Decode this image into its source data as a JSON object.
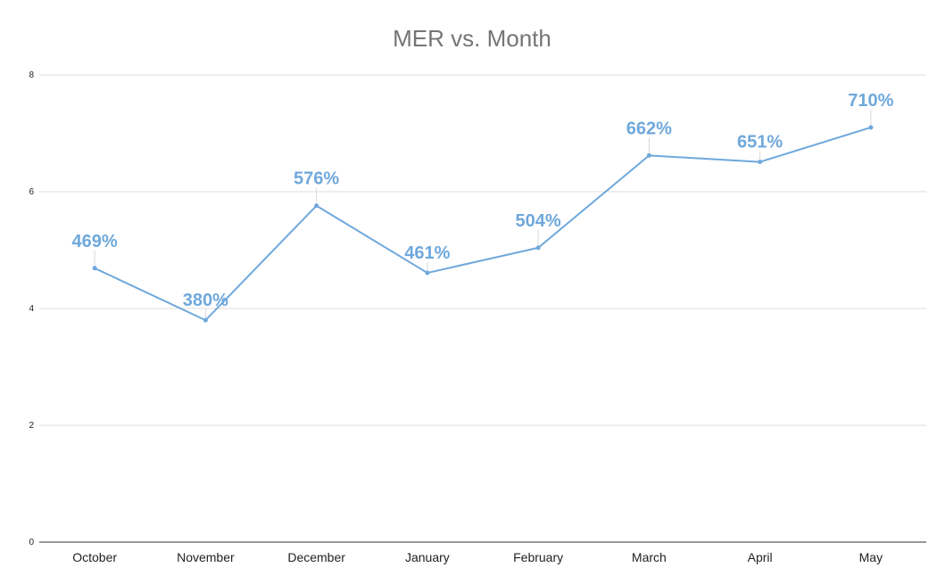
{
  "chart_data": {
    "type": "line",
    "title": "MER vs. Month",
    "xlabel": "",
    "ylabel": "",
    "categories": [
      "October",
      "November",
      "December",
      "January",
      "February",
      "March",
      "April",
      "May"
    ],
    "series": [
      {
        "values": [
          4.69,
          3.8,
          5.76,
          4.61,
          5.04,
          6.62,
          6.51,
          7.1
        ],
        "data_labels": [
          "469%",
          "380%",
          "576%",
          "461%",
          "504%",
          "662%",
          "651%",
          "710%"
        ],
        "color": "#6fa8dc"
      }
    ],
    "ylim": [
      0,
      8
    ],
    "yticks": [
      "0",
      "2",
      "4",
      "6",
      "8"
    ],
    "grid": true,
    "legend": "none"
  }
}
